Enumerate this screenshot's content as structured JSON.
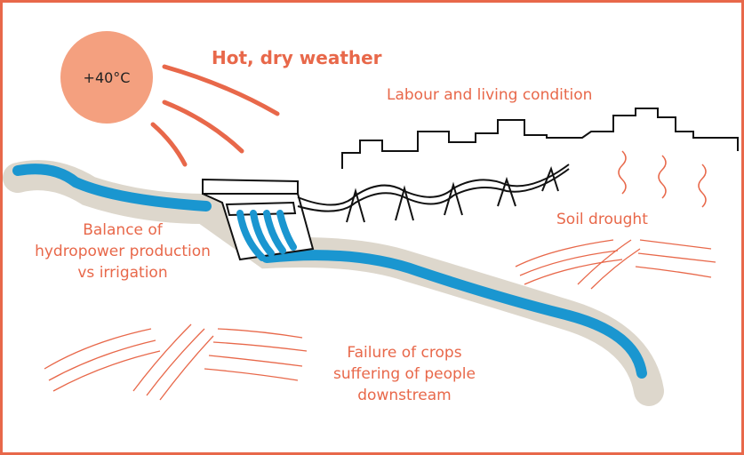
{
  "sun": {
    "label": "+40°C"
  },
  "title": "Hot, dry weather",
  "labels": {
    "labour": "Labour and living condition",
    "soil": "Soil drought",
    "balance": [
      "Balance of",
      "hydropower production",
      "vs irrigation"
    ],
    "failure": [
      "Failure of crops",
      "suffering of people",
      "downstream"
    ]
  }
}
